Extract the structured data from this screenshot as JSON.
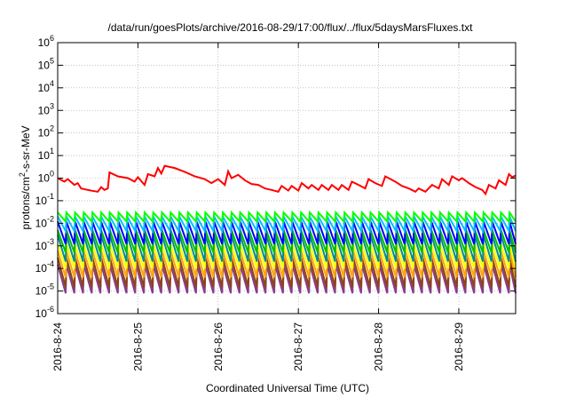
{
  "chart_data": {
    "type": "line",
    "title": "/data/run/goesPlots/archive/2016-08-29/17:00/flux/../flux/5daysMarsFluxes.txt",
    "xlabel": "Coordinated Universal Time (UTC)",
    "ylabel": "protons/cm²-s-sr-MeV",
    "ylabel_parts": {
      "pre": "protons/cm",
      "sup": "2",
      "post": "-s-sr-MeV"
    },
    "y_scale": "log",
    "ylim": [
      1e-06,
      1000000.0
    ],
    "y_ticks": [
      {
        "value": 1e-06,
        "base": "10",
        "exp": "-6"
      },
      {
        "value": 1e-05,
        "base": "10",
        "exp": "-5"
      },
      {
        "value": 0.0001,
        "base": "10",
        "exp": "-4"
      },
      {
        "value": 0.001,
        "base": "10",
        "exp": "-3"
      },
      {
        "value": 0.01,
        "base": "10",
        "exp": "-2"
      },
      {
        "value": 0.1,
        "base": "10",
        "exp": "-1"
      },
      {
        "value": 1.0,
        "base": "10",
        "exp": "0"
      },
      {
        "value": 10.0,
        "base": "10",
        "exp": "1"
      },
      {
        "value": 100.0,
        "base": "10",
        "exp": "2"
      },
      {
        "value": 1000.0,
        "base": "10",
        "exp": "3"
      },
      {
        "value": 10000.0,
        "base": "10",
        "exp": "4"
      },
      {
        "value": 100000.0,
        "base": "10",
        "exp": "5"
      },
      {
        "value": 1000000.0,
        "base": "10",
        "exp": "6"
      }
    ],
    "xlim": [
      "2016-08-24T00:00",
      "2016-08-29T17:00"
    ],
    "x_ticks": [
      "2016-8-24",
      "2016-8-25",
      "2016-8-26",
      "2016-8-27",
      "2016-8-28",
      "2016-8-29"
    ],
    "grid": true,
    "series": [
      {
        "color": "#ff0000",
        "points": [
          [
            "2016-08-24T00:00",
            1.0
          ],
          [
            "2016-08-24T02:00",
            0.7
          ],
          [
            "2016-08-24T03:00",
            0.9
          ],
          [
            "2016-08-24T05:00",
            0.5
          ],
          [
            "2016-08-24T06:00",
            0.6
          ],
          [
            "2016-08-24T07:00",
            0.35
          ],
          [
            "2016-08-24T09:00",
            0.3
          ],
          [
            "2016-08-24T10:00",
            0.28
          ],
          [
            "2016-08-24T12:00",
            0.25
          ],
          [
            "2016-08-24T13:00",
            0.4
          ],
          [
            "2016-08-24T14:00",
            0.3
          ],
          [
            "2016-08-24T15:00",
            0.35
          ],
          [
            "2016-08-24T15:30",
            1.8
          ],
          [
            "2016-08-24T18:00",
            1.2
          ],
          [
            "2016-08-24T21:00",
            1.0
          ],
          [
            "2016-08-24T23:00",
            0.7
          ],
          [
            "2016-08-25T00:00",
            1.1
          ],
          [
            "2016-08-25T02:00",
            0.5
          ],
          [
            "2016-08-25T03:00",
            1.5
          ],
          [
            "2016-08-25T05:00",
            1.2
          ],
          [
            "2016-08-25T06:00",
            2.8
          ],
          [
            "2016-08-25T07:00",
            1.6
          ],
          [
            "2016-08-25T08:00",
            3.5
          ],
          [
            "2016-08-25T11:00",
            2.8
          ],
          [
            "2016-08-25T14:00",
            1.9
          ],
          [
            "2016-08-25T17:00",
            1.2
          ],
          [
            "2016-08-25T20:00",
            0.9
          ],
          [
            "2016-08-25T22:00",
            0.6
          ],
          [
            "2016-08-26T00:00",
            0.9
          ],
          [
            "2016-08-26T02:00",
            0.5
          ],
          [
            "2016-08-26T03:00",
            2.0
          ],
          [
            "2016-08-26T04:00",
            1.0
          ],
          [
            "2016-08-26T06:00",
            1.4
          ],
          [
            "2016-08-26T08:00",
            0.8
          ],
          [
            "2016-08-26T10:00",
            0.55
          ],
          [
            "2016-08-26T12:00",
            0.5
          ],
          [
            "2016-08-26T14:00",
            0.35
          ],
          [
            "2016-08-26T16:00",
            0.3
          ],
          [
            "2016-08-26T18:00",
            0.25
          ],
          [
            "2016-08-26T19:00",
            0.45
          ],
          [
            "2016-08-26T21:00",
            0.28
          ],
          [
            "2016-08-26T22:00",
            0.45
          ],
          [
            "2016-08-27T00:00",
            0.28
          ],
          [
            "2016-08-27T01:00",
            0.6
          ],
          [
            "2016-08-27T03:00",
            0.35
          ],
          [
            "2016-08-27T04:00",
            0.5
          ],
          [
            "2016-08-27T06:00",
            0.3
          ],
          [
            "2016-08-27T07:00",
            0.5
          ],
          [
            "2016-08-27T09:00",
            0.3
          ],
          [
            "2016-08-27T10:00",
            0.5
          ],
          [
            "2016-08-27T12:00",
            0.3
          ],
          [
            "2016-08-27T13:00",
            0.5
          ],
          [
            "2016-08-27T15:00",
            0.3
          ],
          [
            "2016-08-27T16:00",
            0.7
          ],
          [
            "2016-08-27T18:00",
            0.5
          ],
          [
            "2016-08-27T20:00",
            0.35
          ],
          [
            "2016-08-27T21:00",
            0.9
          ],
          [
            "2016-08-27T23:00",
            0.6
          ],
          [
            "2016-08-28T01:00",
            0.45
          ],
          [
            "2016-08-28T02:00",
            1.2
          ],
          [
            "2016-08-28T05:00",
            0.7
          ],
          [
            "2016-08-28T07:00",
            0.45
          ],
          [
            "2016-08-28T09:00",
            0.35
          ],
          [
            "2016-08-28T11:00",
            0.25
          ],
          [
            "2016-08-28T12:00",
            0.35
          ],
          [
            "2016-08-28T14:00",
            0.25
          ],
          [
            "2016-08-28T16:00",
            0.5
          ],
          [
            "2016-08-28T18:00",
            0.35
          ],
          [
            "2016-08-28T19:00",
            0.9
          ],
          [
            "2016-08-28T21:00",
            0.5
          ],
          [
            "2016-08-28T22:00",
            1.2
          ],
          [
            "2016-08-29T00:00",
            0.8
          ],
          [
            "2016-08-29T01:00",
            1.0
          ],
          [
            "2016-08-29T03:00",
            0.6
          ],
          [
            "2016-08-29T05:00",
            0.4
          ],
          [
            "2016-08-29T07:00",
            0.3
          ],
          [
            "2016-08-29T08:00",
            0.2
          ],
          [
            "2016-08-29T09:00",
            0.5
          ],
          [
            "2016-08-29T11:00",
            0.35
          ],
          [
            "2016-08-29T12:00",
            0.8
          ],
          [
            "2016-08-29T14:00",
            0.5
          ],
          [
            "2016-08-29T15:00",
            1.5
          ],
          [
            "2016-08-29T16:00",
            1.1
          ],
          [
            "2016-08-29T17:00",
            1.3
          ]
        ]
      },
      {
        "color": "#00ff00",
        "periodic": {
          "start": "2016-08-24T00:00",
          "end": "2016-08-29T17:00",
          "period_hours": 2.6,
          "peak": 0.03,
          "trough": 0.012
        }
      },
      {
        "color": "#00bfff",
        "periodic": {
          "start": "2016-08-24T00:00",
          "end": "2016-08-29T17:00",
          "period_hours": 2.6,
          "peak": 0.02,
          "trough": 0.0045
        }
      },
      {
        "color": "#0000ff",
        "periodic": {
          "start": "2016-08-24T00:00",
          "end": "2016-08-29T17:00",
          "period_hours": 2.6,
          "peak": 0.012,
          "trough": 0.0012
        }
      },
      {
        "color": "#00c000",
        "periodic": {
          "start": "2016-08-24T00:00",
          "end": "2016-08-29T17:00",
          "period_hours": 2.6,
          "peak": 0.005,
          "trough": 0.0005
        }
      },
      {
        "color": "#008b8b",
        "periodic": {
          "start": "2016-08-24T00:00",
          "end": "2016-08-29T17:00",
          "period_hours": 2.6,
          "peak": 0.003,
          "trough": 0.0002
        }
      },
      {
        "color": "#ffff00",
        "periodic": {
          "start": "2016-08-24T00:00",
          "end": "2016-08-29T17:00",
          "period_hours": 2.6,
          "peak": 0.0012,
          "trough": 0.0001
        }
      },
      {
        "color": "#ffa500",
        "periodic": {
          "start": "2016-08-24T00:00",
          "end": "2016-08-29T17:00",
          "period_hours": 2.6,
          "peak": 0.0006,
          "trough": 4e-05
        }
      },
      {
        "color": "#8b4513",
        "periodic": {
          "start": "2016-08-24T00:00",
          "end": "2016-08-29T17:00",
          "period_hours": 2.6,
          "peak": 0.0003,
          "trough": 1.5e-05
        }
      },
      {
        "color": "#8b3a8b",
        "periodic": {
          "start": "2016-08-24T00:00",
          "end": "2016-08-29T17:00",
          "period_hours": 2.6,
          "peak": 0.00015,
          "trough": 8e-06
        }
      }
    ]
  }
}
